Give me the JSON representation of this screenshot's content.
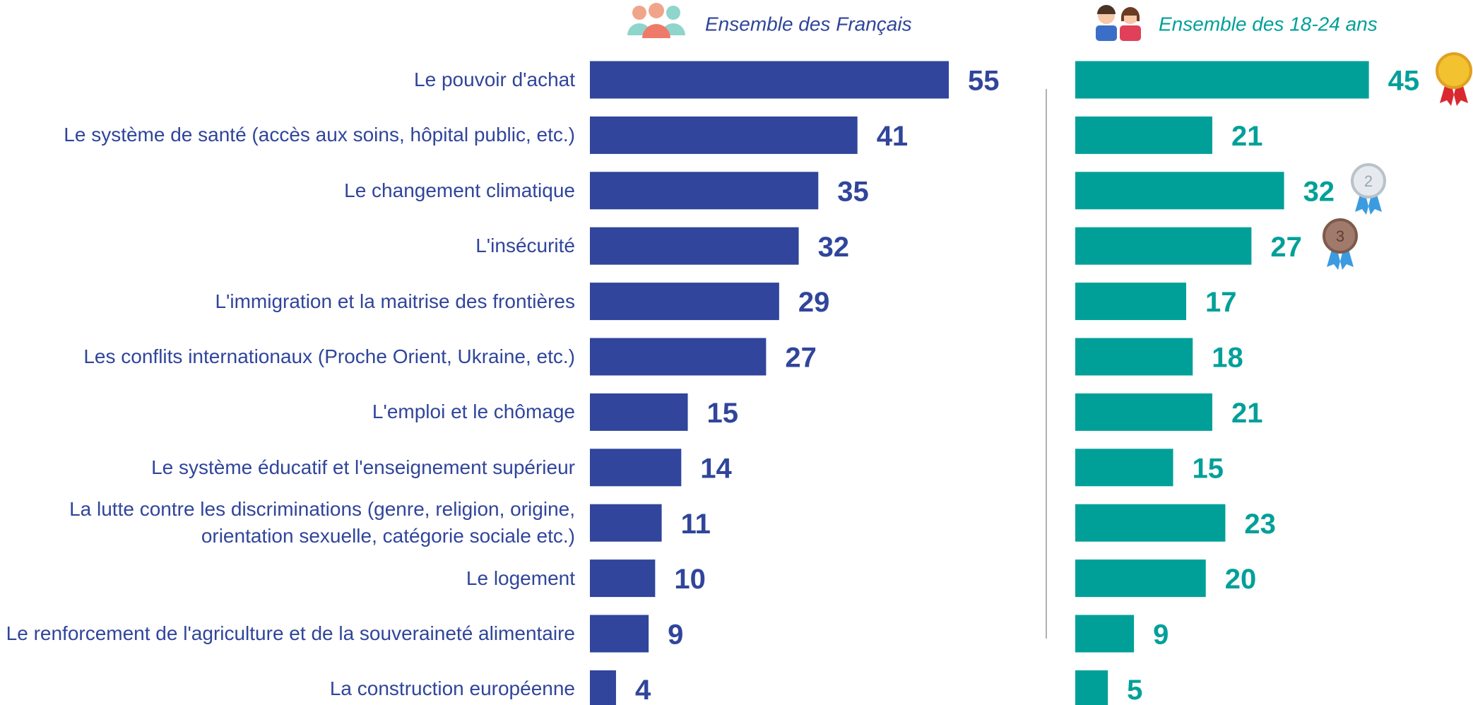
{
  "chart_data": {
    "type": "bar",
    "orientation": "horizontal",
    "categories": [
      "Le pouvoir d'achat",
      "Le système de santé (accès aux soins, hôpital public, etc.)",
      "Le changement climatique",
      "L'insécurité",
      "L'immigration et la maitrise des frontières",
      "Les conflits internationaux (Proche Orient, Ukraine, etc.)",
      "L'emploi et le chômage",
      "Le système éducatif et l'enseignement supérieur",
      "La lutte contre les discriminations (genre, religion, origine, orientation sexuelle, catégorie sociale etc.)",
      "Le logement",
      "Le renforcement de l'agriculture et de la souveraineté alimentaire",
      "La construction européenne"
    ],
    "series": [
      {
        "name": "Ensemble des Français",
        "color": "#30459b",
        "values": [
          55,
          41,
          35,
          32,
          29,
          27,
          15,
          14,
          11,
          10,
          9,
          4
        ]
      },
      {
        "name": "Ensemble des 18-24 ans",
        "color": "#00a099",
        "values": [
          45,
          21,
          32,
          27,
          17,
          18,
          21,
          15,
          23,
          20,
          9,
          5
        ]
      }
    ]
  }
}
